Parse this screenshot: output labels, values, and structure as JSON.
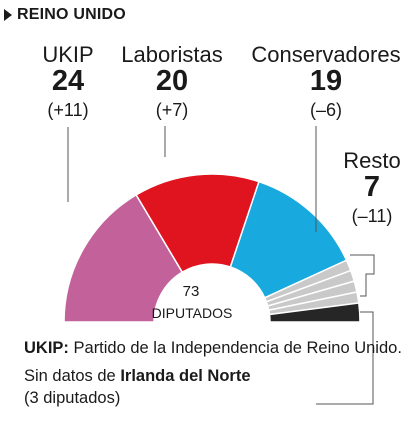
{
  "header": {
    "title": "REINO UNIDO"
  },
  "chart_data": {
    "type": "pie",
    "subtype": "parliament-hemicycle",
    "title": "REINO UNIDO",
    "total_label": "73",
    "unit_label": "DIPUTADOS",
    "series": [
      {
        "name": "UKIP",
        "seats": "24",
        "change": "(+11)",
        "value": 24,
        "color": "#c2619a"
      },
      {
        "name": "Laboristas",
        "seats": "20",
        "change": "(+7)",
        "value": 20,
        "color": "#e0141f"
      },
      {
        "name": "Conservadores",
        "seats": "19",
        "change": "(–6)",
        "value": 19,
        "color": "#18a9de"
      },
      {
        "name": "Resto",
        "seats": "7",
        "change": "(–11)",
        "value": 7,
        "color": "#c9c9c9"
      },
      {
        "name": "",
        "value": 3,
        "color": "#262626"
      }
    ],
    "resto_slices": 4
  },
  "notes": {
    "ukip_abbr": "UKIP:",
    "ukip_text": " Partido de la Independencia de Reino Unido.",
    "nodata_prefix": "Sin datos de ",
    "nodata_bold": "Irlanda del Norte",
    "nodata_suffix": "(3 diputados)"
  }
}
